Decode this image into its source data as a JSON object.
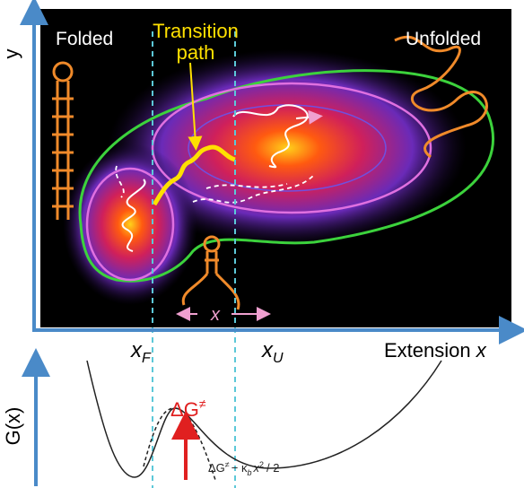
{
  "panel": {
    "y_axis_label": "y",
    "x_axis_label": [
      "Extension",
      "x"
    ],
    "folded_label": "Folded",
    "unfolded_label": "Unfolded",
    "transition_path_label": [
      "Transition",
      "path"
    ],
    "folded_position": [
      "x",
      "F"
    ],
    "unfolded_position": [
      "x",
      "U"
    ],
    "extension_marker": "x"
  },
  "energy_profile": {
    "axis_label": "G(x)",
    "barrier": [
      "ΔG",
      "≠"
    ],
    "approximation": [
      "ΔG",
      "≠",
      "− κ",
      "b",
      "x",
      "2",
      "/ 2"
    ]
  }
}
